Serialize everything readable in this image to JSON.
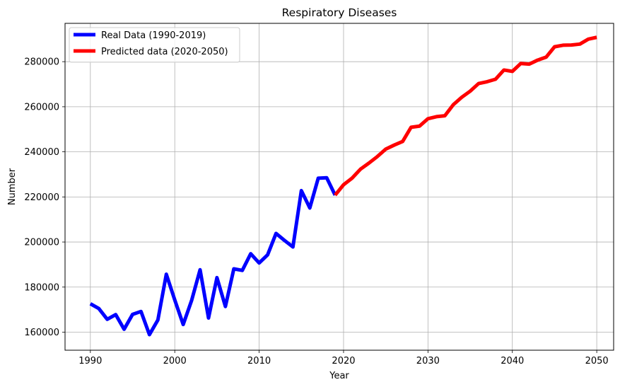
{
  "chart_data": {
    "type": "line",
    "title": "Respiratory Diseases",
    "xlabel": "Year",
    "ylabel": "Number",
    "xlim": [
      1987,
      2052
    ],
    "ylim": [
      152000,
      297000
    ],
    "xticks": [
      1990,
      2000,
      2010,
      2020,
      2030,
      2040,
      2050
    ],
    "yticks": [
      160000,
      180000,
      200000,
      220000,
      240000,
      260000,
      280000
    ],
    "grid": true,
    "legend_position": "top-left",
    "series": [
      {
        "name": "Real Data (1990-2019)",
        "color": "#0000ff",
        "x": [
          1990,
          1991,
          1992,
          1993,
          1994,
          1995,
          1996,
          1997,
          1998,
          1999,
          2000,
          2001,
          2002,
          2003,
          2004,
          2005,
          2006,
          2007,
          2008,
          2009,
          2010,
          2011,
          2012,
          2013,
          2014,
          2015,
          2016,
          2017,
          2018,
          2019
        ],
        "y": [
          172600,
          170500,
          165700,
          167800,
          161300,
          167900,
          169200,
          158900,
          165400,
          185700,
          174300,
          163400,
          174100,
          187700,
          166300,
          184200,
          171400,
          188100,
          187400,
          194800,
          190700,
          194300,
          203800,
          200700,
          197800,
          222800,
          215100,
          228300,
          228500,
          220800
        ]
      },
      {
        "name": "Predicted data (2020-2050)",
        "color": "#ff0000",
        "x": [
          2019,
          2020,
          2021,
          2022,
          2023,
          2024,
          2025,
          2026,
          2027,
          2028,
          2029,
          2030,
          2031,
          2032,
          2033,
          2034,
          2035,
          2036,
          2037,
          2038,
          2039,
          2040,
          2041,
          2042,
          2043,
          2044,
          2045,
          2046,
          2047,
          2048,
          2049,
          2050
        ],
        "y": [
          220800,
          225400,
          228300,
          232300,
          235000,
          237900,
          241200,
          243000,
          244600,
          250900,
          251400,
          254700,
          255600,
          256000,
          260900,
          264200,
          266900,
          270300,
          271100,
          272200,
          276300,
          275700,
          279200,
          278900,
          280700,
          282000,
          286600,
          287300,
          287400,
          287800,
          290000,
          290800
        ]
      }
    ]
  }
}
